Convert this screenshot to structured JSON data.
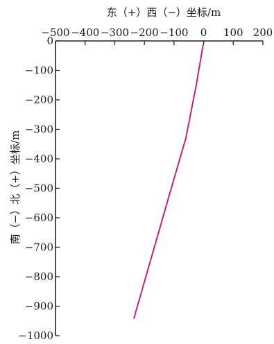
{
  "chart_data": {
    "type": "line",
    "xlabel": "东（+）西（−）坐标/m",
    "ylabel": "南（−）北（+）坐标/m",
    "xlim": [
      -500,
      200
    ],
    "ylim": [
      -1000,
      0
    ],
    "x_ticks": [
      -500,
      -400,
      -300,
      -200,
      -100,
      0,
      100,
      200
    ],
    "y_ticks": [
      0,
      -100,
      -200,
      -300,
      -400,
      -500,
      -600,
      -700,
      -800,
      -900,
      -1000
    ],
    "x_axis_position": "top",
    "grid": false,
    "series": [
      {
        "color": "#c8207a",
        "points": [
          {
            "x": -2,
            "y": -15
          },
          {
            "x": -25,
            "y": -150
          },
          {
            "x": -60,
            "y": -330
          },
          {
            "x": -118,
            "y": -530
          },
          {
            "x": -175,
            "y": -730
          },
          {
            "x": -235,
            "y": -940
          }
        ]
      }
    ]
  }
}
